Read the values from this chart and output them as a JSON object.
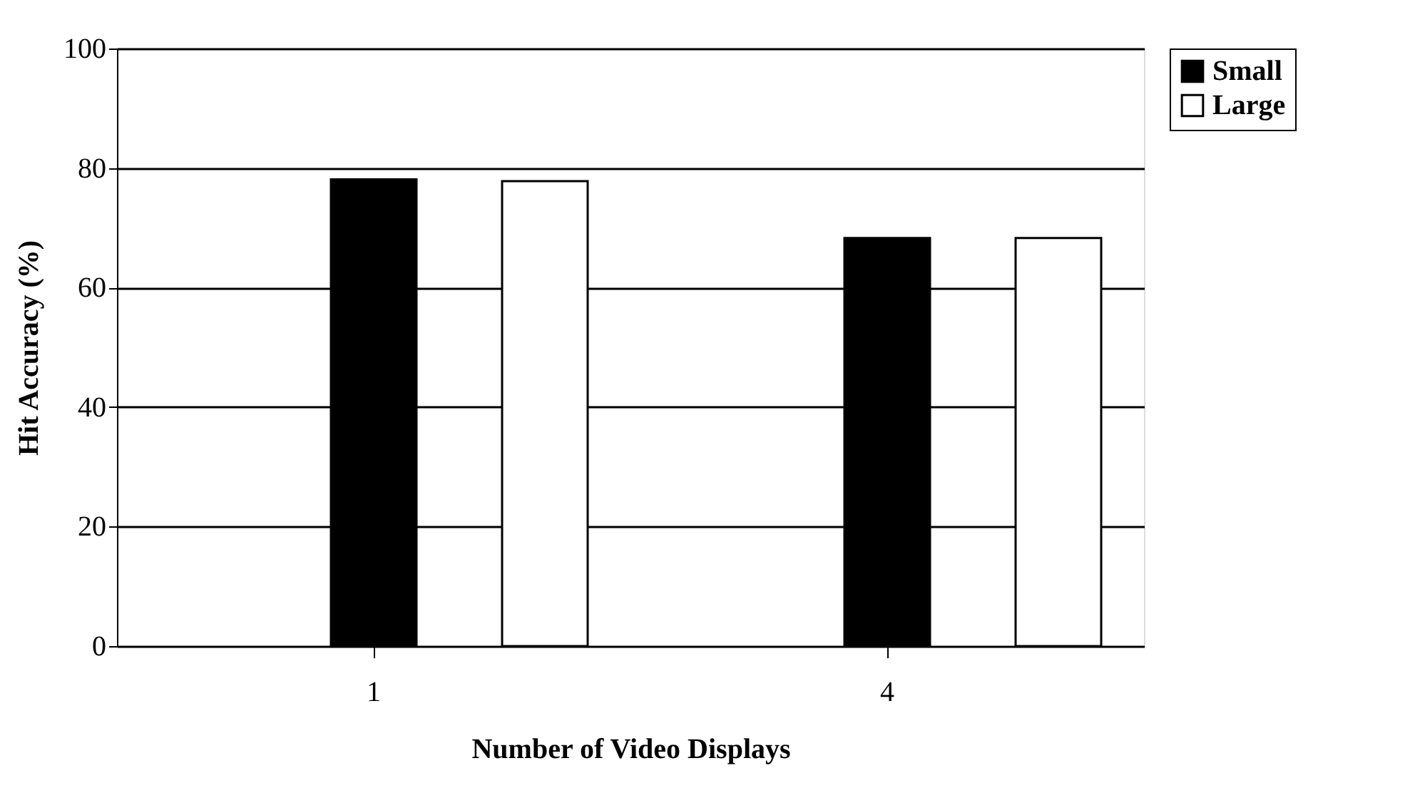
{
  "chart_data": {
    "type": "bar",
    "xlabel": "Number of Video Displays",
    "ylabel": "Hit Accuracy (%)",
    "categories": [
      "1",
      "4"
    ],
    "series": [
      {
        "name": "Small",
        "color": "#000000",
        "values": [
          78.1,
          68.3
        ]
      },
      {
        "name": "Large",
        "color": "#ffffff",
        "values": [
          77.8,
          68.3
        ]
      }
    ],
    "ylim": [
      0,
      100
    ],
    "yticks": [
      0,
      20,
      40,
      60,
      80,
      100
    ],
    "grid": "y",
    "legend": "right"
  }
}
